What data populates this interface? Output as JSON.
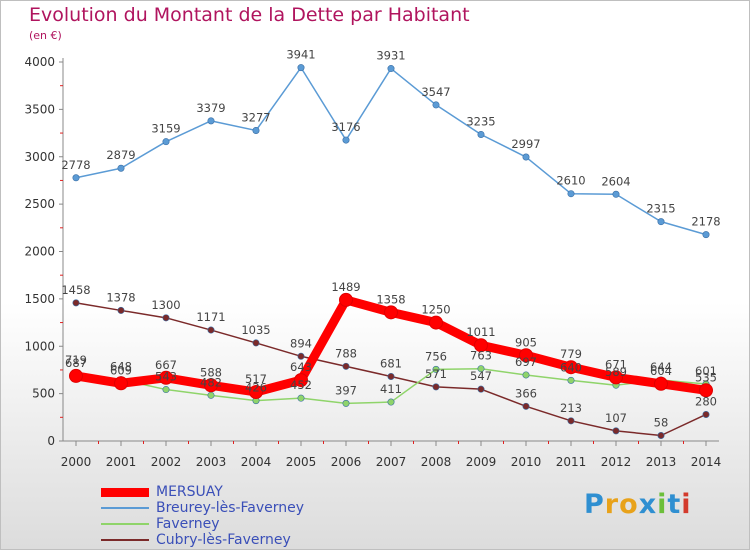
{
  "header": {
    "title": "Evolution du Montant de la Dette par Habitant",
    "subtitle": "(en €)"
  },
  "colors": {
    "title": "#b0145e",
    "axis": "#888888",
    "grid_tick": "#e02020",
    "label": "#444444",
    "legend_text": "#3a4fb8"
  },
  "brand": {
    "text": "Proxiti"
  },
  "chart_data": {
    "type": "line",
    "title": "Evolution du Montant de la Dette par Habitant",
    "subtitle": "(en €)",
    "xlabel": "",
    "ylabel": "",
    "x": [
      "2000",
      "2001",
      "2002",
      "2003",
      "2004",
      "2005",
      "2006",
      "2007",
      "2008",
      "2009",
      "2010",
      "2011",
      "2012",
      "2013",
      "2014"
    ],
    "ylim": [
      0,
      4000
    ],
    "yticks": [
      0,
      500,
      1000,
      1500,
      2000,
      2500,
      3000,
      3500,
      4000
    ],
    "grid": false,
    "legend_position": "bottom-left",
    "series": [
      {
        "name": "MERSUAY",
        "color": "#ff0000",
        "emphasis": true,
        "values": [
          687,
          609,
          667,
          588,
          517,
          643,
          1489,
          1358,
          1250,
          1011,
          905,
          779,
          671,
          604,
          535
        ]
      },
      {
        "name": "Breurey-lès-Faverney",
        "color": "#5b9bd5",
        "values": [
          2778,
          2879,
          3159,
          3379,
          3277,
          3941,
          3176,
          3931,
          3547,
          3235,
          2997,
          2610,
          2604,
          2315,
          2178
        ]
      },
      {
        "name": "Faverney",
        "color": "#8fd46a",
        "values": [
          719,
          648,
          543,
          482,
          426,
          452,
          397,
          411,
          756,
          763,
          697,
          640,
          589,
          644,
          601
        ]
      },
      {
        "name": "Cubry-lès-Faverney",
        "color": "#7b2a2a",
        "values": [
          1458,
          1378,
          1300,
          1171,
          1035,
          894,
          788,
          681,
          571,
          547,
          366,
          213,
          107,
          58,
          280
        ]
      }
    ]
  }
}
